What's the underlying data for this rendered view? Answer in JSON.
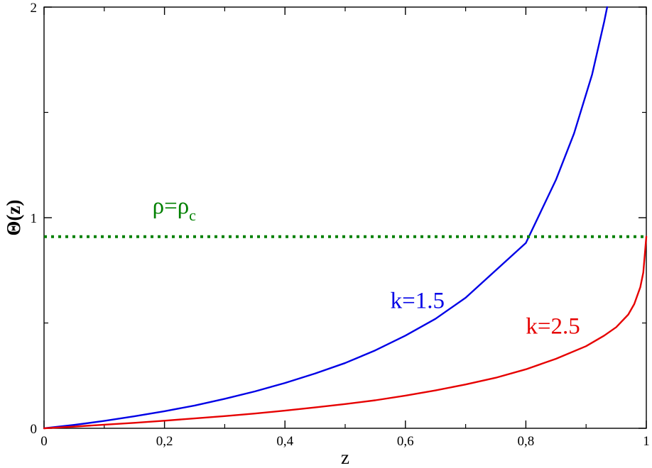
{
  "chart_data": {
    "type": "line",
    "xlabel": "z",
    "ylabel": "Θ(z)",
    "xlim": [
      0,
      1
    ],
    "ylim": [
      0,
      2
    ],
    "x_ticks": [
      "0",
      "0,2",
      "0,4",
      "0,6",
      "0,8",
      "1"
    ],
    "y_ticks": [
      "0",
      "1",
      "2"
    ],
    "grid": false,
    "series": [
      {
        "name": "k=1.5",
        "color": "#0000e6",
        "x": [
          0,
          0.05,
          0.1,
          0.15,
          0.2,
          0.25,
          0.3,
          0.35,
          0.4,
          0.45,
          0.5,
          0.55,
          0.6,
          0.65,
          0.7,
          0.75,
          0.8,
          0.85,
          0.88,
          0.91,
          0.93,
          0.935
        ],
        "y": [
          0,
          0.016,
          0.035,
          0.057,
          0.081,
          0.108,
          0.14,
          0.175,
          0.215,
          0.26,
          0.31,
          0.37,
          0.44,
          0.52,
          0.62,
          0.75,
          0.88,
          1.18,
          1.4,
          1.68,
          1.93,
          2.0
        ]
      },
      {
        "name": "k=2.5",
        "color": "#e60000",
        "x": [
          0,
          0.05,
          0.1,
          0.15,
          0.2,
          0.25,
          0.3,
          0.35,
          0.4,
          0.45,
          0.5,
          0.55,
          0.6,
          0.65,
          0.7,
          0.75,
          0.8,
          0.85,
          0.9,
          0.93,
          0.95,
          0.97,
          0.98,
          0.99,
          0.995,
          1.0
        ],
        "y": [
          0,
          0.008,
          0.017,
          0.026,
          0.036,
          0.047,
          0.058,
          0.07,
          0.084,
          0.099,
          0.115,
          0.133,
          0.155,
          0.18,
          0.208,
          0.24,
          0.28,
          0.33,
          0.39,
          0.44,
          0.48,
          0.54,
          0.59,
          0.67,
          0.74,
          0.91
        ]
      },
      {
        "name": "ρ=ρc",
        "color": "#008000",
        "style": "dotted",
        "x": [
          0,
          1
        ],
        "y": [
          0.91,
          0.91
        ]
      }
    ],
    "annotations": [
      {
        "text": "ρ=ρ",
        "sub": "c",
        "x": 0.18,
        "y": 1.02,
        "color": "#008000"
      },
      {
        "text": "k=1.5",
        "x": 0.575,
        "y": 0.57,
        "color": "#0000e6"
      },
      {
        "text": "k=2.5",
        "x": 0.8,
        "y": 0.45,
        "color": "#e60000"
      }
    ]
  }
}
